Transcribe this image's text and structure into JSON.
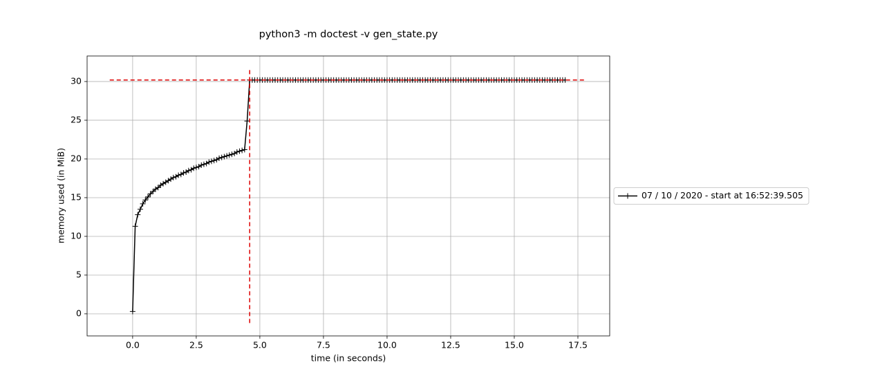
{
  "chart_data": {
    "type": "line",
    "title": "python3 -m doctest -v gen_state.py",
    "x_label": "time (in seconds)",
    "y_label": "memory used (in MiB)",
    "x": [
      0,
      0.1,
      0.2,
      0.3,
      0.4,
      0.5,
      0.6,
      0.7,
      0.8,
      0.9,
      1,
      1.1,
      1.2,
      1.3,
      1.4,
      1.5,
      1.6,
      1.7,
      1.8,
      1.9,
      2,
      2.1,
      2.2,
      2.3,
      2.4,
      2.5,
      2.6,
      2.7,
      2.8,
      2.9,
      3,
      3.1,
      3.2,
      3.3,
      3.4,
      3.5,
      3.6,
      3.7,
      3.8,
      3.9,
      4,
      4.1,
      4.2,
      4.3,
      4.4,
      4.5,
      4.6,
      4.7,
      4.8,
      4.9,
      5,
      5.1,
      5.2,
      5.3,
      5.4,
      5.5,
      5.6,
      5.7,
      5.8,
      5.9,
      6,
      6.1,
      6.2,
      6.3,
      6.4,
      6.5,
      6.6,
      6.7,
      6.8,
      6.9,
      7,
      7.1,
      7.2,
      7.3,
      7.4,
      7.5,
      7.6,
      7.7,
      7.8,
      7.9,
      8,
      8.1,
      8.2,
      8.3,
      8.4,
      8.5,
      8.6,
      8.7,
      8.8,
      8.9,
      9,
      9.1,
      9.2,
      9.3,
      9.4,
      9.5,
      9.6,
      9.7,
      9.8,
      9.9,
      10,
      10.1,
      10.2,
      10.3,
      10.4,
      10.5,
      10.6,
      10.7,
      10.8,
      10.9,
      11,
      11.1,
      11.2,
      11.3,
      11.4,
      11.5,
      11.6,
      11.7,
      11.8,
      11.9,
      12,
      12.1,
      12.2,
      12.3,
      12.4,
      12.5,
      12.6,
      12.7,
      12.8,
      12.9,
      13,
      13.1,
      13.2,
      13.3,
      13.4,
      13.5,
      13.6,
      13.7,
      13.8,
      13.9,
      14,
      14.1,
      14.2,
      14.3,
      14.4,
      14.5,
      14.6,
      14.7,
      14.8,
      14.9,
      15,
      15.1,
      15.2,
      15.3,
      15.4,
      15.5,
      15.6,
      15.7,
      15.8,
      15.9,
      16,
      16.1,
      16.2,
      16.3,
      16.4,
      16.5,
      16.6,
      16.7,
      16.8,
      16.9,
      17
    ],
    "series": [
      {
        "name": "07 / 10 / 2020 - start at 16:52:39.505",
        "color": "#000000",
        "values": [
          0.3,
          11.3,
          12.8,
          13.5,
          14.2,
          14.7,
          15.1,
          15.5,
          15.8,
          16.1,
          16.3,
          16.6,
          16.8,
          17.0,
          17.2,
          17.4,
          17.6,
          17.7,
          17.9,
          18.0,
          18.2,
          18.3,
          18.5,
          18.6,
          18.8,
          18.9,
          19.0,
          19.2,
          19.3,
          19.4,
          19.6,
          19.7,
          19.8,
          19.9,
          20.1,
          20.2,
          20.3,
          20.4,
          20.5,
          20.6,
          20.7,
          20.9,
          21.0,
          21.1,
          21.2,
          24.9,
          30.2,
          30.2,
          30.2,
          30.2,
          30.2,
          30.2,
          30.2,
          30.2,
          30.2,
          30.2,
          30.2,
          30.2,
          30.2,
          30.2,
          30.2,
          30.2,
          30.2,
          30.2,
          30.2,
          30.2,
          30.2,
          30.2,
          30.2,
          30.2,
          30.2,
          30.2,
          30.2,
          30.2,
          30.2,
          30.2,
          30.2,
          30.2,
          30.2,
          30.2,
          30.2,
          30.2,
          30.2,
          30.2,
          30.2,
          30.2,
          30.2,
          30.2,
          30.2,
          30.2,
          30.2,
          30.2,
          30.2,
          30.2,
          30.2,
          30.2,
          30.2,
          30.2,
          30.2,
          30.2,
          30.2,
          30.2,
          30.2,
          30.2,
          30.2,
          30.2,
          30.2,
          30.2,
          30.2,
          30.2,
          30.2,
          30.2,
          30.2,
          30.2,
          30.2,
          30.2,
          30.2,
          30.2,
          30.2,
          30.2,
          30.2,
          30.2,
          30.2,
          30.2,
          30.2,
          30.2,
          30.2,
          30.2,
          30.2,
          30.2,
          30.2,
          30.2,
          30.2,
          30.2,
          30.2,
          30.2,
          30.2,
          30.2,
          30.2,
          30.2,
          30.2,
          30.2,
          30.2,
          30.2,
          30.2,
          30.2,
          30.2,
          30.2,
          30.2,
          30.2,
          30.2,
          30.2,
          30.2,
          30.2,
          30.2,
          30.2,
          30.2,
          30.2,
          30.2,
          30.2,
          30.2,
          30.2,
          30.2,
          30.2,
          30.2,
          30.2,
          30.2,
          30.2,
          30.2,
          30.2,
          30.2
        ]
      }
    ],
    "max_lines": {
      "color": "#dd0000",
      "y": 30.2,
      "y_xmin": -0.9,
      "y_xmax": 17.8,
      "x": 4.6,
      "x_ymin": -1.2,
      "x_ymax": 31.7
    },
    "xlim": [
      -1.79,
      18.75
    ],
    "ylim": [
      -2.86,
      33.3
    ],
    "xticks": [
      {
        "value": 0,
        "label": "0.0"
      },
      2.5,
      {
        "value": 5,
        "label": "5.0"
      },
      7.5,
      {
        "value": 10,
        "label": "10.0"
      },
      12.5,
      {
        "value": 15,
        "label": "15.0"
      },
      17.5
    ],
    "yticks": [
      0,
      5,
      10,
      15,
      20,
      25,
      30
    ],
    "grid": true,
    "legend": "right"
  }
}
